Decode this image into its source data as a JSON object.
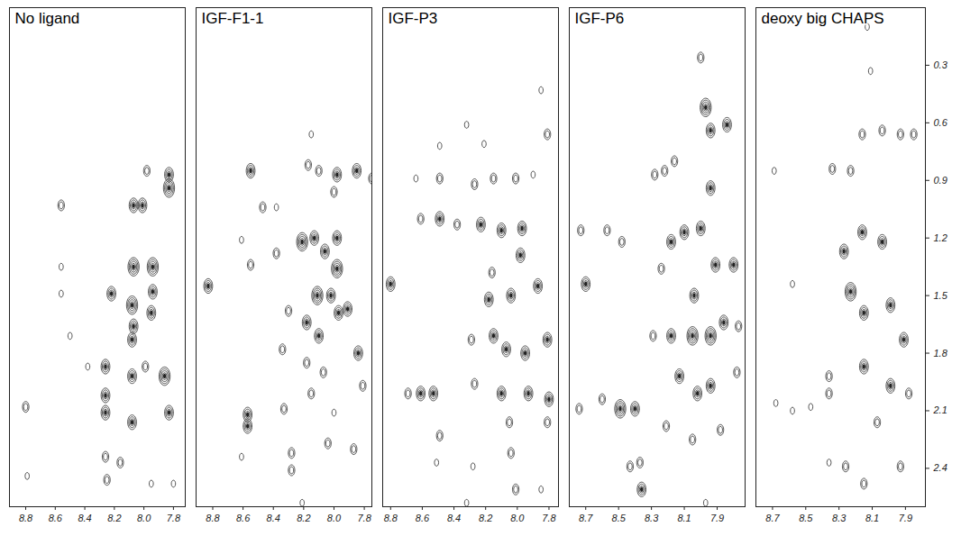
{
  "chart_data": [
    {
      "type": "contour",
      "title": "No ligand",
      "xlim": [
        8.91,
        7.72
      ],
      "xticks": [
        8.8,
        8.6,
        8.4,
        8.2,
        {
          "value": 8,
          "label": "8.0"
        },
        7.8
      ],
      "ylim": [
        2.6,
        0
      ],
      "tick_labels": "x",
      "x": [
        8.8,
        8.79,
        8.56,
        8.56,
        8.56,
        8.22,
        8.26,
        8.26,
        8.26,
        8.25,
        8.26,
        8.07,
        8.08,
        8.08,
        8.08,
        8.08,
        8.16,
        8.07,
        7.94,
        7.94,
        7.95,
        8.07,
        8.01,
        7.83,
        7.83,
        7.98,
        7.86,
        7.83,
        7.99,
        7.95,
        7.8,
        8.5,
        8.38
      ],
      "y": [
        2.08,
        2.44,
        1.03,
        1.35,
        1.49,
        1.49,
        1.87,
        2.11,
        2.34,
        2.46,
        2.02,
        1.66,
        1.55,
        1.73,
        1.92,
        2.16,
        2.37,
        1.35,
        1.35,
        1.48,
        1.59,
        1.03,
        1.03,
        0.94,
        0.87,
        0.85,
        1.92,
        2.11,
        1.87,
        2.48,
        2.48,
        1.71,
        1.87
      ],
      "levels": [
        2,
        1,
        2,
        1,
        1,
        3,
        3,
        3,
        2,
        2,
        3,
        3,
        4,
        3,
        3,
        3,
        2,
        4,
        4,
        3,
        3,
        3,
        3,
        4,
        3,
        2,
        4,
        3,
        2,
        1,
        1,
        1,
        1
      ]
    },
    {
      "type": "contour",
      "title": "IGF-F1-1",
      "xlim": [
        8.91,
        7.75
      ],
      "xticks": [
        8.8,
        8.6,
        8.4,
        8.2,
        {
          "value": 8,
          "label": "8.0"
        },
        7.8
      ],
      "ylim": [
        2.6,
        0
      ],
      "tick_labels": "x",
      "x": [
        8.83,
        8.61,
        8.55,
        8.55,
        8.57,
        8.57,
        8.61,
        8.47,
        8.38,
        8.38,
        8.34,
        8.33,
        8.28,
        8.28,
        8.15,
        8.17,
        8.1,
        8.0,
        7.98,
        7.85,
        7.75,
        8.21,
        8.13,
        8.06,
        7.98,
        8.3,
        8.18,
        8.11,
        8.1,
        7.98,
        8.02,
        7.97,
        7.91,
        8.18,
        8.07,
        7.84,
        7.81,
        7.87,
        8.15,
        8.0,
        8.04,
        8.21
      ],
      "y": [
        1.45,
        1.21,
        0.85,
        1.34,
        2.12,
        2.18,
        2.34,
        1.04,
        1.04,
        1.28,
        1.78,
        2.09,
        2.32,
        2.41,
        0.66,
        0.82,
        0.85,
        0.96,
        0.87,
        0.85,
        0.89,
        1.22,
        1.2,
        1.27,
        1.2,
        1.58,
        1.64,
        1.5,
        1.71,
        1.36,
        1.5,
        1.59,
        1.57,
        1.85,
        1.9,
        1.8,
        1.97,
        2.3,
        2.01,
        2.11,
        2.27,
        2.58
      ],
      "levels": [
        3,
        1,
        3,
        2,
        3,
        3,
        1,
        2,
        1,
        2,
        2,
        2,
        2,
        2,
        1,
        2,
        2,
        2,
        3,
        3,
        2,
        4,
        3,
        3,
        3,
        2,
        3,
        4,
        3,
        4,
        3,
        3,
        3,
        2,
        2,
        3,
        2,
        2,
        2,
        1,
        2,
        1
      ]
    },
    {
      "type": "contour",
      "title": "IGF-P3",
      "xlim": [
        8.85,
        7.74
      ],
      "xticks": [
        8.8,
        8.6,
        8.4,
        8.2,
        {
          "value": 8,
          "label": "8.0"
        },
        7.8
      ],
      "ylim": [
        2.6,
        0
      ],
      "tick_labels": "x",
      "x": [
        8.8,
        8.64,
        8.49,
        8.49,
        8.61,
        8.49,
        8.69,
        8.61,
        8.53,
        8.49,
        8.51,
        8.32,
        8.21,
        8.27,
        8.15,
        8.01,
        7.9,
        7.81,
        7.85,
        8.38,
        8.23,
        8.1,
        7.97,
        7.98,
        8.16,
        8.18,
        8.04,
        7.87,
        8.29,
        8.15,
        8.07,
        7.95,
        7.81,
        8.27,
        8.1,
        7.93,
        7.8,
        8.05,
        7.81,
        8.04,
        8.28,
        8.01,
        7.85,
        8.32
      ],
      "y": [
        1.44,
        0.89,
        0.89,
        0.72,
        1.1,
        1.1,
        2.01,
        2.01,
        2.01,
        2.23,
        2.37,
        0.61,
        0.71,
        0.92,
        0.89,
        0.89,
        0.87,
        0.66,
        0.43,
        1.13,
        1.13,
        1.16,
        1.15,
        1.29,
        1.38,
        1.52,
        1.5,
        1.45,
        1.73,
        1.71,
        1.78,
        1.8,
        1.73,
        1.96,
        2.01,
        2.01,
        2.04,
        2.16,
        2.16,
        2.32,
        2.39,
        2.51,
        2.51,
        2.58
      ],
      "levels": [
        3,
        1,
        2,
        1,
        2,
        3,
        2,
        3,
        3,
        2,
        1,
        1,
        1,
        2,
        2,
        2,
        1,
        2,
        1,
        2,
        3,
        3,
        3,
        3,
        2,
        3,
        3,
        3,
        2,
        3,
        3,
        3,
        3,
        2,
        3,
        3,
        3,
        2,
        2,
        2,
        1,
        2,
        1,
        1
      ]
    },
    {
      "type": "contour",
      "title": "IGF-P6",
      "xlim": [
        8.8,
        7.73
      ],
      "xticks": [
        8.7,
        8.5,
        8.3,
        8.1,
        7.9
      ],
      "ylim": [
        2.6,
        0
      ],
      "tick_labels": "x",
      "x": [
        8.74,
        8.73,
        8.7,
        8.57,
        8.48,
        8.6,
        8.49,
        8.4,
        8.43,
        8.37,
        8.36,
        8.28,
        8.22,
        8.16,
        8.1,
        8.18,
        8.24,
        8.29,
        8.18,
        7.97,
        7.94,
        7.84,
        7.94,
        8.0,
        8.0,
        7.91,
        7.8,
        8.04,
        8.05,
        7.94,
        7.86,
        7.77,
        8.13,
        8.02,
        7.94,
        7.78,
        8.05,
        7.88,
        7.97,
        8.21
      ],
      "y": [
        2.09,
        1.16,
        1.44,
        1.16,
        1.22,
        2.04,
        2.09,
        2.09,
        2.39,
        2.37,
        2.51,
        0.87,
        0.85,
        0.8,
        1.17,
        1.22,
        1.36,
        1.71,
        1.71,
        0.52,
        0.64,
        0.61,
        0.94,
        0.26,
        1.15,
        1.34,
        1.34,
        1.5,
        1.71,
        1.71,
        1.64,
        1.66,
        1.92,
        2.01,
        1.97,
        1.9,
        2.25,
        2.2,
        2.58,
        2.18
      ],
      "levels": [
        2,
        2,
        3,
        2,
        2,
        2,
        4,
        3,
        2,
        2,
        3,
        2,
        2,
        2,
        3,
        3,
        2,
        2,
        3,
        4,
        3,
        3,
        3,
        2,
        3,
        3,
        3,
        3,
        4,
        4,
        3,
        2,
        3,
        3,
        3,
        2,
        2,
        2,
        1,
        2
      ]
    },
    {
      "type": "contour",
      "title": "deoxy big CHAPS",
      "xlim": [
        8.8,
        7.78
      ],
      "xticks": [
        8.7,
        8.5,
        8.3,
        8.1,
        7.9
      ],
      "ylim": [
        2.6,
        0
      ],
      "yticks": [
        0.3,
        0.6,
        0.9,
        1.2,
        1.5,
        1.8,
        2.1,
        2.4
      ],
      "x": [
        8.69,
        8.58,
        8.68,
        8.58,
        8.47,
        8.36,
        8.36,
        8.36,
        8.34,
        8.23,
        8.27,
        8.23,
        8.16,
        8.04,
        8.13,
        8.11,
        8.16,
        8.04,
        7.93,
        7.85,
        8.15,
        7.99,
        7.91,
        8.15,
        7.99,
        7.88,
        8.07,
        8.15,
        7.93,
        8.26
      ],
      "y": [
        0.85,
        1.44,
        2.06,
        2.1,
        2.08,
        2.01,
        1.92,
        2.37,
        0.84,
        0.85,
        1.27,
        1.48,
        1.17,
        1.22,
        0.1,
        0.33,
        0.66,
        0.64,
        0.66,
        0.66,
        1.59,
        1.55,
        1.73,
        1.87,
        1.97,
        2.01,
        2.16,
        2.48,
        2.39,
        2.39
      ],
      "levels": [
        1,
        1,
        1,
        1,
        1,
        2,
        2,
        1,
        2,
        2,
        3,
        4,
        3,
        3,
        1,
        1,
        2,
        2,
        2,
        2,
        3,
        3,
        3,
        3,
        3,
        2,
        2,
        2,
        2,
        2
      ]
    }
  ]
}
